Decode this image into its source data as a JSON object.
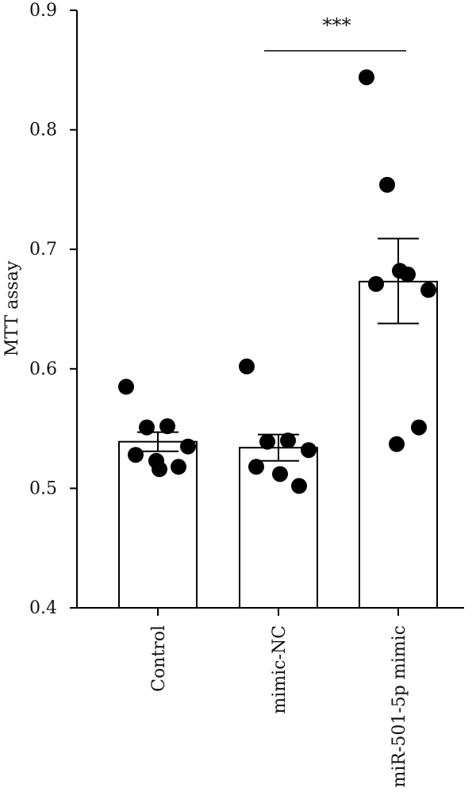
{
  "chart_data": {
    "type": "bar",
    "ylabel": "MTT assay",
    "ylim": [
      0.4,
      0.9
    ],
    "yticks": [
      "0.4",
      "0.5",
      "0.6",
      "0.7",
      "0.8",
      "0.9"
    ],
    "categories": [
      "Control",
      "mimic-NC",
      "miR-501-5p mimic"
    ],
    "means": [
      0.539,
      0.534,
      0.673
    ],
    "sem_upper": [
      0.547,
      0.545,
      0.709
    ],
    "sem_lower": [
      0.531,
      0.523,
      0.638
    ],
    "points": [
      [
        0.585,
        0.551,
        0.552,
        0.535,
        0.528,
        0.516,
        0.518,
        0.523
      ],
      [
        0.602,
        0.539,
        0.54,
        0.532,
        0.518,
        0.512,
        0.502
      ],
      [
        0.844,
        0.754,
        0.679,
        0.666,
        0.671,
        0.682,
        0.551,
        0.537
      ]
    ],
    "significance": {
      "label": "***",
      "from": "mimic-NC",
      "to": "miR-501-5p mimic"
    },
    "bar_fill": "#ffffff",
    "bar_stroke": "#000000",
    "point_color": "#000000",
    "grid": false,
    "legend": "none"
  }
}
